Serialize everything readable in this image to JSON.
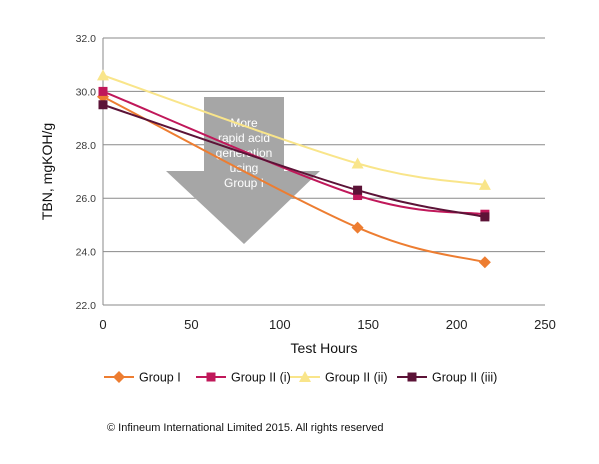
{
  "chart_data": {
    "type": "line",
    "xlabel": "Test Hours",
    "ylabel": "TBN, mgKOH/g",
    "xlim": [
      0,
      250
    ],
    "ylim": [
      22.0,
      32.0
    ],
    "x_ticks": [
      "0",
      "50",
      "100",
      "150",
      "200",
      "250"
    ],
    "y_ticks": [
      "22.0",
      "24.0",
      "26.0",
      "28.0",
      "30.0",
      "32.0"
    ],
    "grid": "horizontal",
    "legend_position": "bottom",
    "series": [
      {
        "name": "Group I",
        "color": "#ed7d31",
        "marker": "diamond",
        "points": [
          [
            0,
            29.8
          ],
          [
            144,
            24.9
          ],
          [
            216,
            23.6
          ]
        ]
      },
      {
        "name": "Group II (i)",
        "color": "#c0185a",
        "marker": "square",
        "points": [
          [
            0,
            30.0
          ],
          [
            144,
            26.1
          ],
          [
            216,
            25.4
          ]
        ]
      },
      {
        "name": "Group II (ii)",
        "color": "#f9e58a",
        "marker": "triangle",
        "points": [
          [
            0,
            30.6
          ],
          [
            144,
            27.3
          ],
          [
            216,
            26.5
          ]
        ]
      },
      {
        "name": "Group II (iii)",
        "color": "#5c1337",
        "marker": "square",
        "points": [
          [
            0,
            29.5
          ],
          [
            144,
            26.3
          ],
          [
            216,
            25.3
          ]
        ]
      }
    ],
    "annotation": {
      "lines": [
        "More",
        "rapid acid",
        "generation",
        "using",
        "Group I"
      ],
      "color": "#a6a6a6"
    }
  },
  "copyright": "© Infineum International Limited 2015. All rights reserved"
}
